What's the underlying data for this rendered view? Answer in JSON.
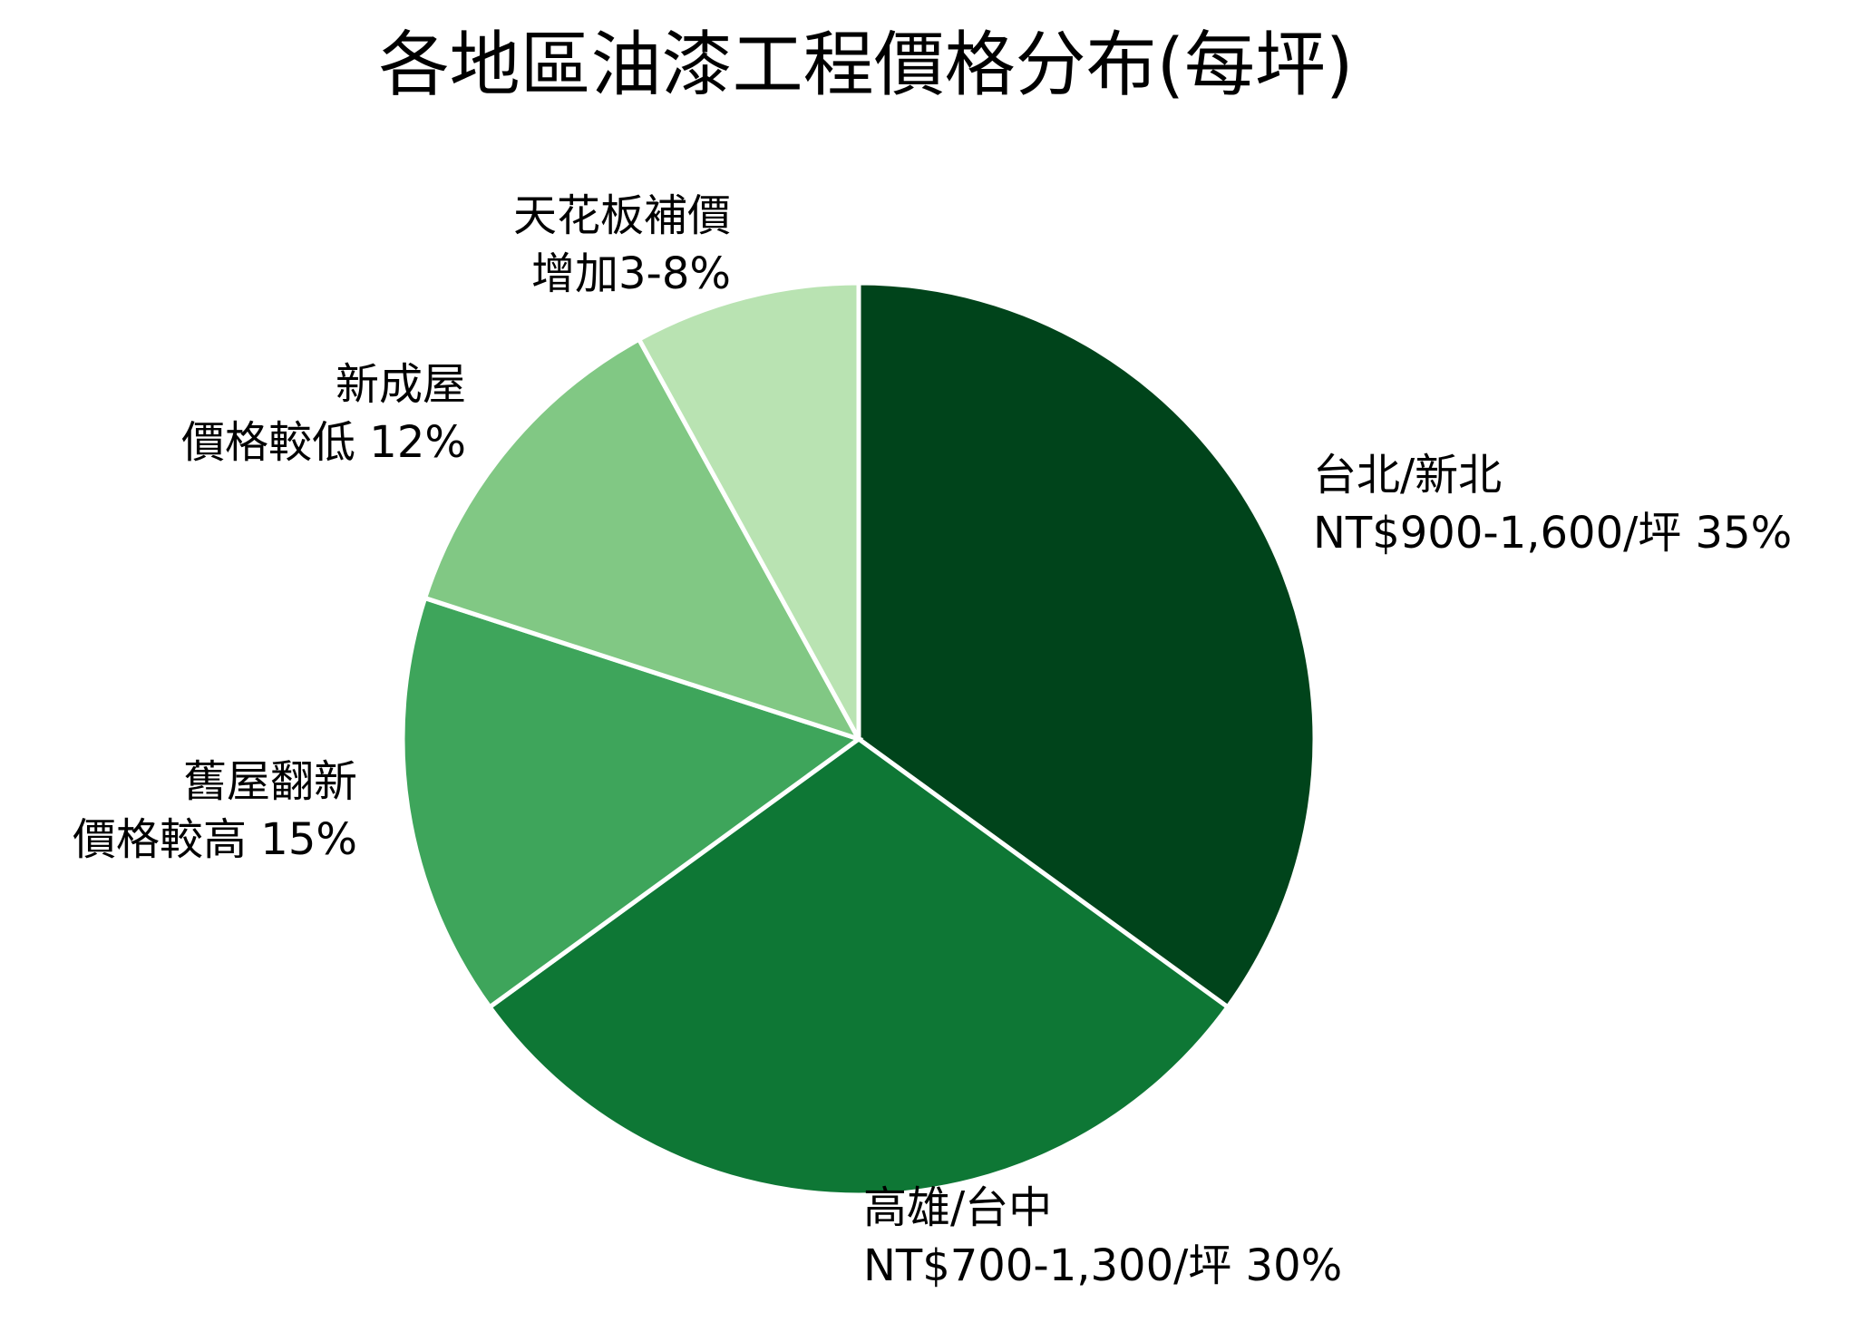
{
  "chart_data": {
    "type": "pie",
    "title": "各地區油漆工程價格分布(每坪)",
    "start_angle_deg": 90,
    "direction": "clockwise",
    "slices": [
      {
        "label_lines": [
          "台北/新北",
          "NT$900-1,600/坪 35%"
        ],
        "value": 35,
        "color": "#00441b"
      },
      {
        "label_lines": [
          "高雄/台中",
          "NT$700-1,300/坪 30%"
        ],
        "value": 30,
        "color": "#0e7735"
      },
      {
        "label_lines": [
          "舊屋翻新",
          "價格較高 15%"
        ],
        "value": 15,
        "color": "#3ea55b"
      },
      {
        "label_lines": [
          "新成屋",
          "價格較低 12%"
        ],
        "value": 12,
        "color": "#81c884"
      },
      {
        "label_lines": [
          "天花板補價",
          "增加3-8%"
        ],
        "value": 8,
        "color": "#b9e3b2"
      }
    ]
  }
}
